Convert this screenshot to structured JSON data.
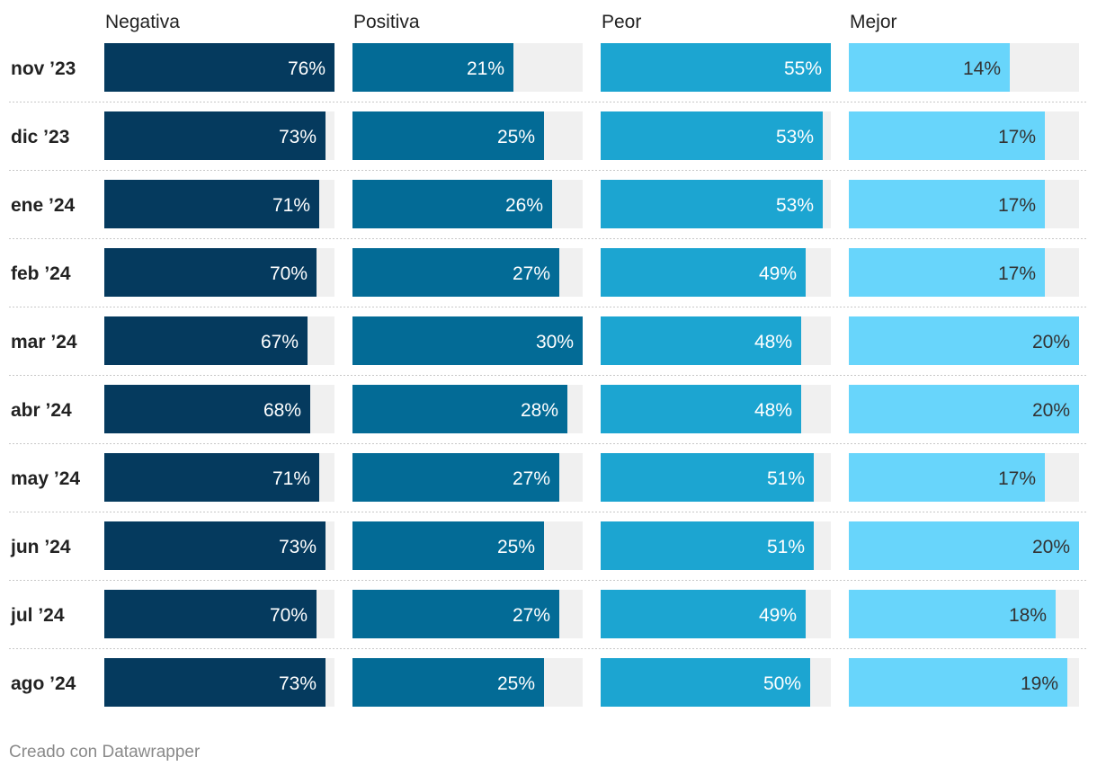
{
  "chart_data": {
    "type": "bar",
    "title": "",
    "categories": [
      "nov ’23",
      "dic ’23",
      "ene ’24",
      "feb ’24",
      "mar ’24",
      "abr ’24",
      "may ’24",
      "jun ’24",
      "jul ’24",
      "ago ’24"
    ],
    "series": [
      {
        "name": "Negativa",
        "color": "#053a5e",
        "label_color": "#ffffff",
        "values": [
          76,
          73,
          71,
          70,
          67,
          68,
          71,
          73,
          70,
          73
        ]
      },
      {
        "name": "Positiva",
        "color": "#036b96",
        "label_color": "#ffffff",
        "values": [
          21,
          25,
          26,
          27,
          30,
          28,
          27,
          25,
          27,
          25
        ]
      },
      {
        "name": "Peor",
        "color": "#1ca5d1",
        "label_color": "#ffffff",
        "values": [
          55,
          53,
          53,
          49,
          48,
          48,
          51,
          51,
          49,
          50
        ]
      },
      {
        "name": "Mejor",
        "color": "#68d5fb",
        "label_color": "#333333",
        "values": [
          14,
          17,
          17,
          17,
          20,
          20,
          17,
          20,
          18,
          19
        ]
      }
    ],
    "value_suffix": "%",
    "layout": "small-multiples-horizontal-bars"
  },
  "footer": {
    "credit": "Creado con Datawrapper"
  }
}
